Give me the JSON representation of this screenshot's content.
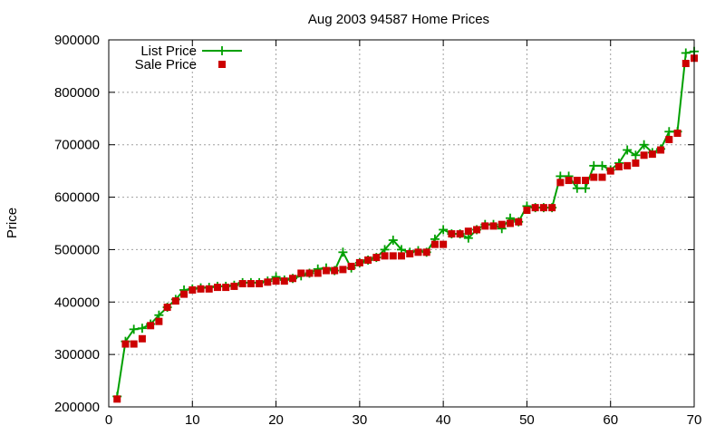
{
  "chart_data": {
    "type": "line",
    "title": "Aug 2003 94587 Home Prices",
    "xlabel": "",
    "ylabel": "Price",
    "xlim": [
      0,
      70
    ],
    "ylim": [
      200000,
      900000
    ],
    "xticks": [
      "0",
      "10",
      "20",
      "30",
      "40",
      "50",
      "60",
      "70"
    ],
    "yticks": [
      "200000",
      "300000",
      "400000",
      "500000",
      "600000",
      "700000",
      "800000",
      "900000"
    ],
    "grid": true,
    "legend_position": "top-left",
    "series": [
      {
        "name": "List Price",
        "style": "line-plus",
        "color": "#00a000",
        "x": [
          1,
          2,
          3,
          4,
          5,
          6,
          7,
          8,
          9,
          10,
          11,
          12,
          13,
          14,
          15,
          16,
          17,
          18,
          19,
          20,
          21,
          22,
          23,
          24,
          25,
          26,
          27,
          28,
          29,
          30,
          31,
          32,
          33,
          34,
          35,
          36,
          37,
          38,
          39,
          40,
          41,
          42,
          43,
          44,
          45,
          46,
          47,
          48,
          49,
          50,
          51,
          52,
          53,
          54,
          55,
          56,
          57,
          58,
          59,
          60,
          61,
          62,
          63,
          64,
          65,
          66,
          67,
          68,
          69,
          70
        ],
        "values": [
          220000,
          325000,
          348000,
          350000,
          358000,
          375000,
          390000,
          405000,
          423000,
          425000,
          427000,
          428000,
          430000,
          430000,
          432000,
          437000,
          437000,
          437000,
          440000,
          448000,
          442000,
          445000,
          450000,
          455000,
          463000,
          465000,
          460000,
          495000,
          465000,
          475000,
          480000,
          485000,
          500000,
          518000,
          500000,
          495000,
          498000,
          495000,
          520000,
          538000,
          530000,
          530000,
          522000,
          538000,
          548000,
          548000,
          540000,
          560000,
          553000,
          583000,
          580000,
          580000,
          580000,
          640000,
          640000,
          617000,
          617000,
          660000,
          660000,
          652000,
          665000,
          690000,
          680000,
          700000,
          685000,
          692000,
          725000,
          725000,
          875000,
          878000
        ]
      },
      {
        "name": "Sale Price",
        "style": "square-points",
        "color": "#cc0000",
        "x": [
          1,
          2,
          3,
          4,
          5,
          6,
          7,
          8,
          9,
          10,
          11,
          12,
          13,
          14,
          15,
          16,
          17,
          18,
          19,
          20,
          21,
          22,
          23,
          24,
          25,
          26,
          27,
          28,
          29,
          30,
          31,
          32,
          33,
          34,
          35,
          36,
          37,
          38,
          39,
          40,
          41,
          42,
          43,
          44,
          45,
          46,
          47,
          48,
          49,
          50,
          51,
          52,
          53,
          54,
          55,
          56,
          57,
          58,
          59,
          60,
          61,
          62,
          63,
          64,
          65,
          66,
          67,
          68,
          69,
          70
        ],
        "values": [
          215000,
          320000,
          320000,
          330000,
          355000,
          363000,
          390000,
          402000,
          415000,
          423000,
          425000,
          425000,
          428000,
          428000,
          430000,
          435000,
          435000,
          435000,
          438000,
          440000,
          440000,
          445000,
          455000,
          455000,
          455000,
          460000,
          460000,
          462000,
          468000,
          475000,
          480000,
          485000,
          488000,
          488000,
          488000,
          492000,
          495000,
          495000,
          510000,
          510000,
          530000,
          530000,
          535000,
          538000,
          545000,
          545000,
          548000,
          550000,
          553000,
          575000,
          580000,
          580000,
          580000,
          628000,
          632000,
          632000,
          632000,
          638000,
          638000,
          650000,
          658000,
          660000,
          665000,
          680000,
          682000,
          690000,
          710000,
          722000,
          855000,
          865000
        ]
      }
    ]
  }
}
